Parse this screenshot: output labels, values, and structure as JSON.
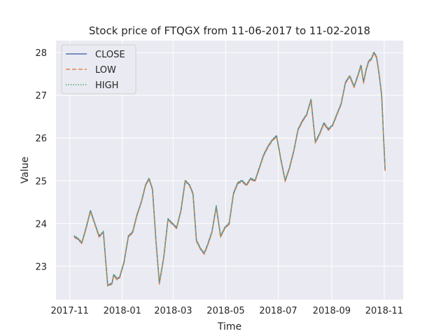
{
  "chart_data": {
    "type": "line",
    "title": "Stock price of FTQGX from 11-06-2017 to 11-02-2018",
    "xlabel": "Time",
    "ylabel": "Value",
    "x_range": [
      "2017-10-16",
      "2018-11-23"
    ],
    "ylim": [
      22.22,
      28.28
    ],
    "grid": true,
    "legend_position": "top-left",
    "x_ticks": [
      {
        "date": "2017-11-01",
        "label": "2017-11"
      },
      {
        "date": "2018-01-01",
        "label": "2018-01"
      },
      {
        "date": "2018-03-01",
        "label": "2018-03"
      },
      {
        "date": "2018-05-01",
        "label": "2018-05"
      },
      {
        "date": "2018-07-01",
        "label": "2018-07"
      },
      {
        "date": "2018-09-01",
        "label": "2018-09"
      },
      {
        "date": "2018-11-01",
        "label": "2018-11"
      }
    ],
    "y_ticks": [
      23,
      24,
      25,
      26,
      27,
      28
    ],
    "colors": {
      "background": "#eaeaf2",
      "grid": "#ffffff",
      "close": "#4c72b0",
      "low": "#dd8452",
      "high": "#55a868"
    },
    "x": [
      "2017-11-06",
      "2017-11-10",
      "2017-11-15",
      "2017-11-20",
      "2017-11-25",
      "2017-11-30",
      "2017-12-05",
      "2017-12-10",
      "2017-12-15",
      "2017-12-20",
      "2017-12-22",
      "2017-12-26",
      "2017-12-29",
      "2018-01-03",
      "2018-01-08",
      "2018-01-13",
      "2018-01-18",
      "2018-01-23",
      "2018-01-28",
      "2018-02-01",
      "2018-02-05",
      "2018-02-09",
      "2018-02-13",
      "2018-02-18",
      "2018-02-23",
      "2018-02-28",
      "2018-03-05",
      "2018-03-10",
      "2018-03-15",
      "2018-03-20",
      "2018-03-24",
      "2018-03-28",
      "2018-04-02",
      "2018-04-06",
      "2018-04-10",
      "2018-04-15",
      "2018-04-20",
      "2018-04-25",
      "2018-04-30",
      "2018-05-05",
      "2018-05-10",
      "2018-05-15",
      "2018-05-20",
      "2018-05-25",
      "2018-05-30",
      "2018-06-04",
      "2018-06-09",
      "2018-06-14",
      "2018-06-19",
      "2018-06-24",
      "2018-06-29",
      "2018-07-04",
      "2018-07-09",
      "2018-07-14",
      "2018-07-19",
      "2018-07-24",
      "2018-07-29",
      "2018-08-03",
      "2018-08-08",
      "2018-08-13",
      "2018-08-18",
      "2018-08-23",
      "2018-08-28",
      "2018-09-02",
      "2018-09-07",
      "2018-09-12",
      "2018-09-17",
      "2018-09-22",
      "2018-09-27",
      "2018-10-02",
      "2018-10-05",
      "2018-10-08",
      "2018-10-11",
      "2018-10-14",
      "2018-10-17",
      "2018-10-20",
      "2018-10-23",
      "2018-10-26",
      "2018-10-29",
      "2018-11-02"
    ],
    "series": [
      {
        "name": "CLOSE",
        "style": "solid",
        "values": [
          23.7,
          23.65,
          23.55,
          23.9,
          24.3,
          24.0,
          23.7,
          23.8,
          22.55,
          22.6,
          22.8,
          22.7,
          22.75,
          23.1,
          23.7,
          23.8,
          24.2,
          24.5,
          24.9,
          25.05,
          24.8,
          23.6,
          22.6,
          23.2,
          24.1,
          24.0,
          23.9,
          24.3,
          25.0,
          24.9,
          24.7,
          23.6,
          23.4,
          23.3,
          23.5,
          23.8,
          24.4,
          23.7,
          23.9,
          24.0,
          24.7,
          24.95,
          25.0,
          24.9,
          25.05,
          25.0,
          25.3,
          25.6,
          25.8,
          25.95,
          26.05,
          25.5,
          25.0,
          25.3,
          25.7,
          26.2,
          26.4,
          26.55,
          26.9,
          25.9,
          26.1,
          26.35,
          26.2,
          26.3,
          26.55,
          26.8,
          27.3,
          27.45,
          27.2,
          27.5,
          27.7,
          27.3,
          27.6,
          27.8,
          27.85,
          28.0,
          27.9,
          27.5,
          27.0,
          25.25
        ]
      },
      {
        "name": "LOW",
        "style": "dashed",
        "values": [
          23.68,
          23.63,
          23.53,
          23.88,
          24.28,
          23.98,
          23.68,
          23.78,
          22.53,
          22.58,
          22.78,
          22.68,
          22.73,
          23.08,
          23.68,
          23.78,
          24.18,
          24.48,
          24.88,
          25.03,
          24.78,
          23.58,
          22.58,
          23.18,
          24.08,
          23.98,
          23.88,
          24.28,
          24.98,
          24.88,
          24.68,
          23.58,
          23.38,
          23.28,
          23.48,
          23.78,
          24.38,
          23.68,
          23.88,
          23.98,
          24.68,
          24.93,
          24.98,
          24.88,
          25.03,
          24.98,
          25.28,
          25.58,
          25.78,
          25.93,
          26.03,
          25.48,
          24.98,
          25.28,
          25.68,
          26.18,
          26.38,
          26.53,
          26.88,
          25.88,
          26.08,
          26.33,
          26.18,
          26.28,
          26.53,
          26.78,
          27.28,
          27.43,
          27.18,
          27.48,
          27.68,
          27.28,
          27.58,
          27.78,
          27.83,
          27.98,
          27.88,
          27.48,
          26.98,
          25.23
        ]
      },
      {
        "name": "HIGH",
        "style": "dotted",
        "values": [
          23.72,
          23.67,
          23.57,
          23.92,
          24.32,
          24.02,
          23.72,
          23.82,
          22.57,
          22.62,
          22.82,
          22.72,
          22.77,
          23.12,
          23.72,
          23.82,
          24.22,
          24.52,
          24.92,
          25.07,
          24.82,
          23.62,
          22.62,
          23.22,
          24.12,
          24.02,
          23.92,
          24.32,
          25.02,
          24.92,
          24.72,
          23.62,
          23.42,
          23.32,
          23.52,
          23.82,
          24.42,
          23.72,
          23.92,
          24.02,
          24.72,
          24.97,
          25.02,
          24.92,
          25.07,
          25.02,
          25.32,
          25.62,
          25.82,
          25.97,
          26.07,
          25.52,
          25.02,
          25.32,
          25.72,
          26.22,
          26.42,
          26.57,
          26.92,
          25.92,
          26.12,
          26.37,
          26.22,
          26.32,
          26.57,
          26.82,
          27.32,
          27.47,
          27.22,
          27.52,
          27.72,
          27.32,
          27.62,
          27.82,
          27.87,
          28.02,
          27.92,
          27.52,
          27.02,
          25.27
        ]
      }
    ]
  }
}
